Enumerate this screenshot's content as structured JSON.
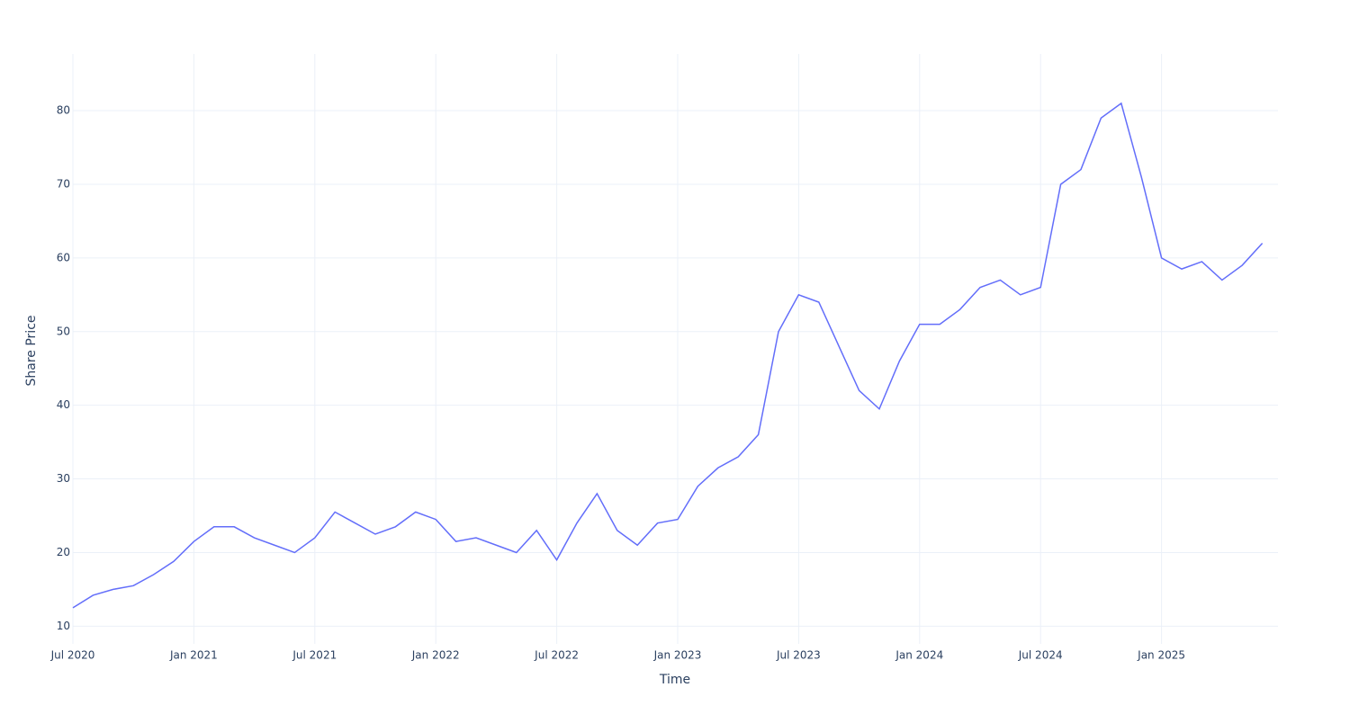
{
  "chart_data": {
    "type": "line",
    "x_label": "Time",
    "y_label": "Share Price",
    "x": [
      "2020-07",
      "2020-08",
      "2020-09",
      "2020-10",
      "2020-11",
      "2020-12",
      "2021-01",
      "2021-02",
      "2021-03",
      "2021-04",
      "2021-05",
      "2021-06",
      "2021-07",
      "2021-08",
      "2021-09",
      "2021-10",
      "2021-11",
      "2021-12",
      "2022-01",
      "2022-02",
      "2022-03",
      "2022-04",
      "2022-05",
      "2022-06",
      "2022-07",
      "2022-08",
      "2022-09",
      "2022-10",
      "2022-11",
      "2022-12",
      "2023-01",
      "2023-02",
      "2023-03",
      "2023-04",
      "2023-05",
      "2023-06",
      "2023-07",
      "2023-08",
      "2023-09",
      "2023-10",
      "2023-11",
      "2023-12",
      "2024-01",
      "2024-02",
      "2024-03",
      "2024-04",
      "2024-05",
      "2024-06",
      "2024-07",
      "2024-08",
      "2024-09",
      "2024-10",
      "2024-11",
      "2024-12",
      "2025-01",
      "2025-02",
      "2025-03",
      "2025-04",
      "2025-05",
      "2025-06"
    ],
    "series": [
      {
        "name": "Share Price",
        "color": "#636efa",
        "values": [
          12.5,
          14.2,
          15,
          15.5,
          17,
          18.8,
          21.5,
          23.5,
          23.5,
          22,
          21,
          20,
          22,
          25.5,
          24,
          22.5,
          23.5,
          25.5,
          24.5,
          21.5,
          22,
          21,
          20,
          23,
          19,
          24,
          28,
          23,
          21,
          24,
          24.5,
          29,
          31.5,
          33,
          36,
          50,
          55,
          54,
          48,
          42,
          39.5,
          46,
          51,
          51,
          53,
          56,
          57,
          55,
          56,
          70,
          72,
          79,
          81,
          71,
          60,
          58.5,
          59.5,
          57,
          59,
          62
        ]
      }
    ],
    "xlim": [
      "2020-07",
      "2025-07"
    ],
    "xticks": [
      {
        "value": "2020-07",
        "label": "Jul 2020"
      },
      {
        "value": "2021-01",
        "label": "Jan 2021"
      },
      {
        "value": "2021-07",
        "label": "Jul 2021"
      },
      {
        "value": "2022-01",
        "label": "Jan 2022"
      },
      {
        "value": "2022-07",
        "label": "Jul 2022"
      },
      {
        "value": "2023-01",
        "label": "Jan 2023"
      },
      {
        "value": "2023-07",
        "label": "Jul 2023"
      },
      {
        "value": "2024-01",
        "label": "Jan 2024"
      },
      {
        "value": "2024-07",
        "label": "Jul 2024"
      },
      {
        "value": "2025-01",
        "label": "Jan 2025"
      }
    ],
    "ylim": [
      7.6,
      87.7
    ],
    "yticks": [
      10,
      20,
      30,
      40,
      50,
      60,
      70,
      80
    ],
    "grid": true
  }
}
